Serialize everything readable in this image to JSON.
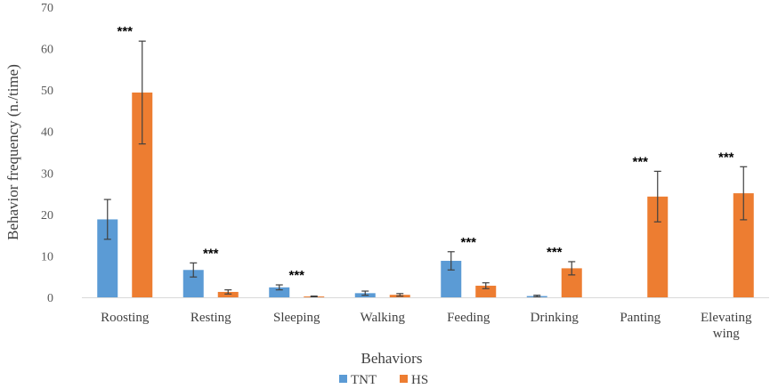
{
  "chart_data": {
    "type": "bar",
    "title": "",
    "xlabel": "Behaviors",
    "ylabel": "Behavior frequency (n./time)",
    "ylim": [
      0,
      70
    ],
    "yticks": [
      0,
      10,
      20,
      30,
      40,
      50,
      60,
      70
    ],
    "grid": false,
    "legend_position": "bottom",
    "categories": [
      [
        "Roosting"
      ],
      [
        "Resting"
      ],
      [
        "Sleeping"
      ],
      [
        "Walking"
      ],
      [
        "Feeding"
      ],
      [
        "Drinking"
      ],
      [
        "Panting"
      ],
      [
        "Elevating",
        "wing"
      ]
    ],
    "series": [
      {
        "name": "TNT",
        "color": "#5B9BD5",
        "values": [
          18.8,
          6.6,
          2.4,
          1.0,
          8.8,
          0.3,
          0,
          0
        ],
        "errors": [
          4.8,
          1.7,
          0.6,
          0.5,
          2.2,
          0.2,
          0,
          0
        ]
      },
      {
        "name": "HS",
        "color": "#ED7D31",
        "values": [
          49.4,
          1.3,
          0.2,
          0.6,
          2.8,
          7.0,
          24.3,
          25.1
        ],
        "errors": [
          12.4,
          0.5,
          0.1,
          0.3,
          0.7,
          1.6,
          6.1,
          6.4
        ]
      }
    ],
    "annotations": [
      "***",
      "***",
      "***",
      "",
      "***",
      "***",
      "***",
      "***"
    ]
  }
}
